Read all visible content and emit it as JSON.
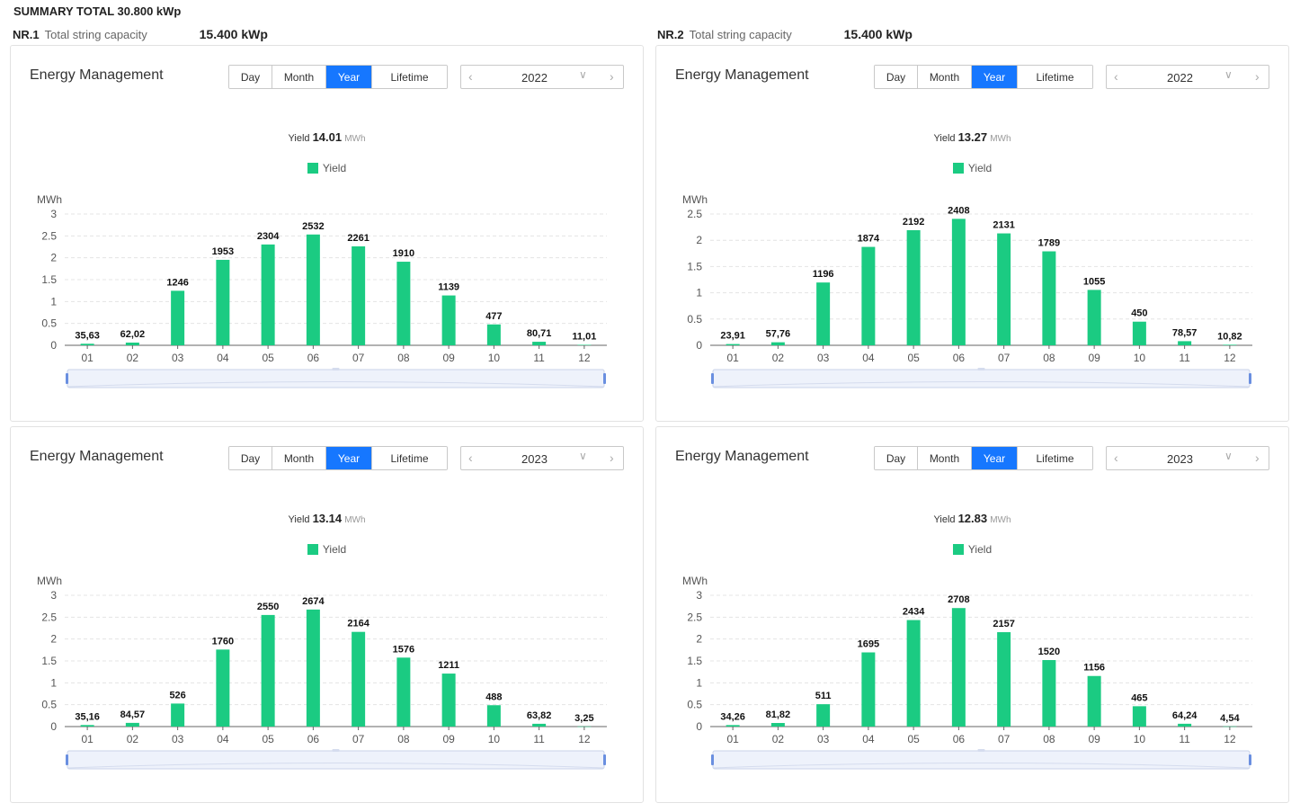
{
  "summary": {
    "label": "SUMMARY TOTAL 30.800 kWp"
  },
  "nr": [
    {
      "id": "NR.1",
      "label": "Total string capacity",
      "value": "15.400 kWp"
    },
    {
      "id": "NR.2",
      "label": "Total string capacity",
      "value": "15.400 kWp"
    }
  ],
  "common": {
    "title": "Energy Management",
    "tabs": [
      "Day",
      "Month",
      "Year",
      "Lifetime"
    ],
    "active_tab": "Year",
    "yield_label": "Yield",
    "yield_unit": "MWh",
    "legend_label": "Yield",
    "y_unit": "MWh",
    "bar_color": "#1bcb82",
    "accent_color": "#1677ff"
  },
  "panels": [
    {
      "year": "2022",
      "total": "14.01"
    },
    {
      "year": "2022",
      "total": "13.27"
    },
    {
      "year": "2023",
      "total": "13.14"
    },
    {
      "year": "2023",
      "total": "12.83"
    }
  ],
  "chart_data": [
    {
      "type": "bar",
      "title": "NR.1 2022",
      "xlabel": "",
      "ylabel": "MWh",
      "categories": [
        "01",
        "02",
        "03",
        "04",
        "05",
        "06",
        "07",
        "08",
        "09",
        "10",
        "11",
        "12"
      ],
      "values": [
        0.03563,
        0.06202,
        1.246,
        1.953,
        2.304,
        2.532,
        2.261,
        1.91,
        1.139,
        0.477,
        0.08071,
        0.01101
      ],
      "labels": [
        "35,63",
        "62,02",
        "1246",
        "1953",
        "2304",
        "2532",
        "2261",
        "1910",
        "1139",
        "477",
        "80,71",
        "11,01"
      ],
      "ylim": [
        0,
        3
      ],
      "yticks": [
        "0",
        "0.5",
        "1",
        "1.5",
        "2",
        "2.5",
        "3"
      ]
    },
    {
      "type": "bar",
      "title": "NR.2 2022",
      "xlabel": "",
      "ylabel": "MWh",
      "categories": [
        "01",
        "02",
        "03",
        "04",
        "05",
        "06",
        "07",
        "08",
        "09",
        "10",
        "11",
        "12"
      ],
      "values": [
        0.02391,
        0.05776,
        1.196,
        1.874,
        2.192,
        2.408,
        2.131,
        1.789,
        1.055,
        0.45,
        0.07857,
        0.01082
      ],
      "labels": [
        "23,91",
        "57,76",
        "1196",
        "1874",
        "2192",
        "2408",
        "2131",
        "1789",
        "1055",
        "450",
        "78,57",
        "10,82"
      ],
      "ylim": [
        0,
        2.5
      ],
      "yticks": [
        "0",
        "0.5",
        "1",
        "1.5",
        "2",
        "2.5"
      ]
    },
    {
      "type": "bar",
      "title": "NR.1 2023",
      "xlabel": "",
      "ylabel": "MWh",
      "categories": [
        "01",
        "02",
        "03",
        "04",
        "05",
        "06",
        "07",
        "08",
        "09",
        "10",
        "11",
        "12"
      ],
      "values": [
        0.03516,
        0.08457,
        0.526,
        1.76,
        2.55,
        2.674,
        2.164,
        1.576,
        1.211,
        0.488,
        0.06382,
        0.00325
      ],
      "labels": [
        "35,16",
        "84,57",
        "526",
        "1760",
        "2550",
        "2674",
        "2164",
        "1576",
        "1211",
        "488",
        "63,82",
        "3,25"
      ],
      "ylim": [
        0,
        3
      ],
      "yticks": [
        "0",
        "0.5",
        "1",
        "1.5",
        "2",
        "2.5",
        "3"
      ]
    },
    {
      "type": "bar",
      "title": "NR.2 2023",
      "xlabel": "",
      "ylabel": "MWh",
      "categories": [
        "01",
        "02",
        "03",
        "04",
        "05",
        "06",
        "07",
        "08",
        "09",
        "10",
        "11",
        "12"
      ],
      "values": [
        0.03426,
        0.08182,
        0.511,
        1.695,
        2.434,
        2.708,
        2.157,
        1.52,
        1.156,
        0.465,
        0.06424,
        0.00454
      ],
      "labels": [
        "34,26",
        "81,82",
        "511",
        "1695",
        "2434",
        "2708",
        "2157",
        "1520",
        "1156",
        "465",
        "64,24",
        "4,54"
      ],
      "ylim": [
        0,
        3
      ],
      "yticks": [
        "0",
        "0.5",
        "1",
        "1.5",
        "2",
        "2.5",
        "3"
      ]
    }
  ]
}
